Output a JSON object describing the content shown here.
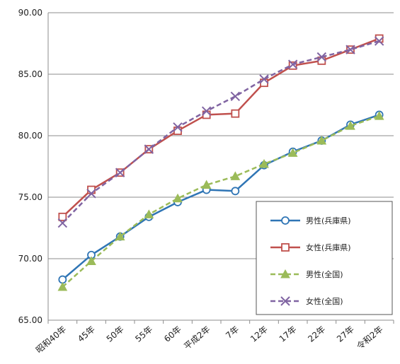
{
  "chart_data": {
    "type": "line",
    "categories": [
      "昭和40年",
      "45年",
      "50年",
      "55年",
      "60年",
      "平成2年",
      "7年",
      "12年",
      "17年",
      "22年",
      "27年",
      "令和2年"
    ],
    "ylim": [
      65,
      90
    ],
    "yticks": [
      "65.00",
      "70.00",
      "75.00",
      "80.00",
      "85.00",
      "90.00"
    ],
    "grid": true,
    "legend_position": "bottom-right",
    "series": [
      {
        "name": "男性(兵庫県)",
        "color": "#2f75b5",
        "marker": "circle",
        "dash": false,
        "values": [
          68.3,
          70.3,
          71.8,
          73.4,
          74.6,
          75.6,
          75.5,
          77.6,
          78.7,
          79.6,
          80.9,
          81.7
        ]
      },
      {
        "name": "女性(兵庫県)",
        "color": "#c0504d",
        "marker": "square",
        "dash": false,
        "values": [
          73.4,
          75.6,
          77.0,
          78.9,
          80.4,
          81.7,
          81.8,
          84.3,
          85.7,
          86.1,
          87.0,
          87.9
        ]
      },
      {
        "name": "男性(全国)",
        "color": "#9bbb59",
        "marker": "triangle",
        "dash": true,
        "values": [
          67.7,
          69.8,
          71.8,
          73.6,
          74.9,
          76.0,
          76.7,
          77.7,
          78.6,
          79.6,
          80.8,
          81.6
        ]
      },
      {
        "name": "女性(全国)",
        "color": "#8064a2",
        "marker": "x",
        "dash": true,
        "values": [
          72.9,
          75.3,
          77.0,
          78.9,
          80.7,
          82.0,
          83.2,
          84.6,
          85.8,
          86.4,
          87.0,
          87.7
        ]
      }
    ]
  }
}
